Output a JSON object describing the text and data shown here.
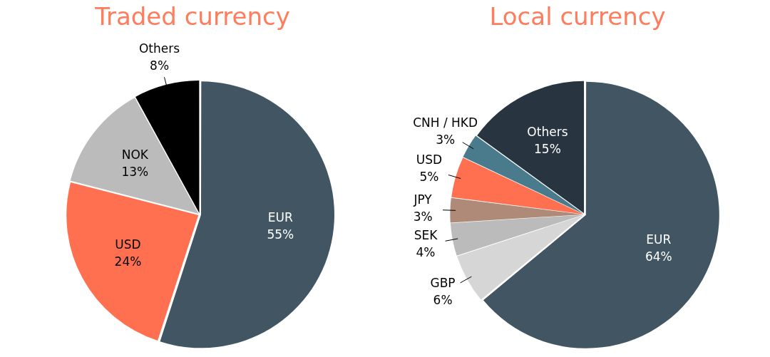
{
  "chart_data": [
    {
      "type": "pie",
      "title": "Traded currency",
      "categories": [
        "EUR",
        "USD",
        "NOK",
        "Others"
      ],
      "values": [
        55,
        24,
        13,
        8
      ],
      "colors": [
        "#415563",
        "#ff7050",
        "#bbbbbb",
        "#000000"
      ],
      "value_labels": [
        "55%",
        "24%",
        "13%",
        "8%"
      ],
      "legend": false
    },
    {
      "type": "pie",
      "title": "Local currency",
      "categories": [
        "EUR",
        "GBP",
        "SEK",
        "JPY",
        "USD",
        "CNH / HKD",
        "Others"
      ],
      "values": [
        64,
        6,
        4,
        3,
        5,
        3,
        15
      ],
      "colors": [
        "#415563",
        "#d6d6d6",
        "#bbbbbb",
        "#b08a78",
        "#ff7050",
        "#4a7b8c",
        "#283540"
      ],
      "value_labels": [
        "64%",
        "6%",
        "4%",
        "3%",
        "5%",
        "3%",
        "15%"
      ],
      "legend": false
    }
  ]
}
